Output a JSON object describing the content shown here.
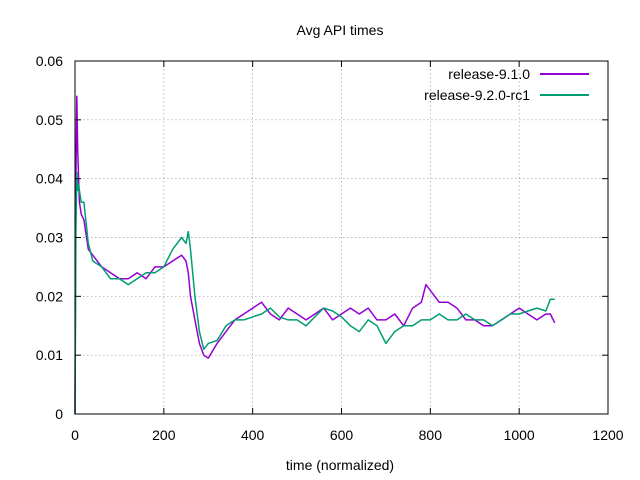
{
  "chart_data": {
    "type": "line",
    "title": "Avg API times",
    "xlabel": "time (normalized)",
    "ylabel": "",
    "xlim": [
      0,
      1200
    ],
    "ylim": [
      0,
      0.06
    ],
    "xticks": [
      0,
      200,
      400,
      600,
      800,
      1000,
      1200
    ],
    "yticks": [
      0,
      0.01,
      0.02,
      0.03,
      0.04,
      0.05,
      0.06
    ],
    "xtick_labels": [
      "0",
      "200",
      "400",
      "600",
      "800",
      "1000",
      "1200"
    ],
    "ytick_labels": [
      "0",
      "0.01",
      "0.02",
      "0.03",
      "0.04",
      "0.05",
      "0.06"
    ],
    "grid": true,
    "legend_position": "top-right",
    "series": [
      {
        "name": "release-9.1.0",
        "color": "#9400d3",
        "x": [
          0,
          2,
          4,
          6,
          8,
          10,
          14,
          20,
          30,
          40,
          60,
          80,
          100,
          120,
          140,
          160,
          180,
          200,
          220,
          240,
          250,
          255,
          260,
          270,
          280,
          290,
          300,
          320,
          340,
          360,
          380,
          400,
          420,
          440,
          460,
          480,
          500,
          520,
          540,
          560,
          580,
          600,
          620,
          640,
          660,
          680,
          700,
          720,
          740,
          760,
          780,
          790,
          800,
          820,
          840,
          860,
          880,
          900,
          920,
          940,
          960,
          980,
          1000,
          1020,
          1040,
          1060,
          1070,
          1080
        ],
        "y": [
          0.0,
          0.04,
          0.054,
          0.045,
          0.04,
          0.036,
          0.034,
          0.033,
          0.028,
          0.027,
          0.025,
          0.024,
          0.023,
          0.023,
          0.024,
          0.023,
          0.025,
          0.025,
          0.026,
          0.027,
          0.026,
          0.024,
          0.02,
          0.016,
          0.012,
          0.01,
          0.0095,
          0.012,
          0.014,
          0.016,
          0.017,
          0.018,
          0.019,
          0.017,
          0.016,
          0.018,
          0.017,
          0.016,
          0.017,
          0.018,
          0.016,
          0.017,
          0.018,
          0.017,
          0.018,
          0.016,
          0.016,
          0.017,
          0.015,
          0.018,
          0.019,
          0.022,
          0.021,
          0.019,
          0.019,
          0.018,
          0.016,
          0.016,
          0.015,
          0.015,
          0.016,
          0.017,
          0.018,
          0.017,
          0.016,
          0.017,
          0.017,
          0.0155
        ]
      },
      {
        "name": "release-9.2.0-rc1",
        "color": "#009e73",
        "x": [
          0,
          2,
          4,
          6,
          8,
          10,
          14,
          20,
          30,
          40,
          60,
          80,
          100,
          120,
          140,
          160,
          180,
          200,
          220,
          240,
          250,
          255,
          260,
          270,
          280,
          290,
          300,
          320,
          340,
          360,
          380,
          400,
          420,
          440,
          460,
          480,
          500,
          520,
          540,
          560,
          580,
          600,
          620,
          640,
          660,
          680,
          700,
          720,
          740,
          760,
          780,
          800,
          820,
          840,
          860,
          880,
          900,
          920,
          940,
          960,
          980,
          1000,
          1020,
          1040,
          1060,
          1070,
          1080
        ],
        "y": [
          0.0,
          0.031,
          0.041,
          0.038,
          0.039,
          0.038,
          0.036,
          0.036,
          0.029,
          0.026,
          0.025,
          0.023,
          0.023,
          0.022,
          0.023,
          0.024,
          0.024,
          0.025,
          0.028,
          0.03,
          0.029,
          0.031,
          0.028,
          0.02,
          0.014,
          0.011,
          0.012,
          0.0125,
          0.015,
          0.016,
          0.016,
          0.0165,
          0.017,
          0.018,
          0.0165,
          0.016,
          0.016,
          0.015,
          0.0165,
          0.018,
          0.0175,
          0.0165,
          0.015,
          0.014,
          0.016,
          0.015,
          0.012,
          0.014,
          0.015,
          0.015,
          0.016,
          0.016,
          0.017,
          0.016,
          0.016,
          0.017,
          0.016,
          0.016,
          0.015,
          0.016,
          0.017,
          0.017,
          0.0175,
          0.018,
          0.0175,
          0.0195,
          0.0195
        ]
      }
    ]
  }
}
